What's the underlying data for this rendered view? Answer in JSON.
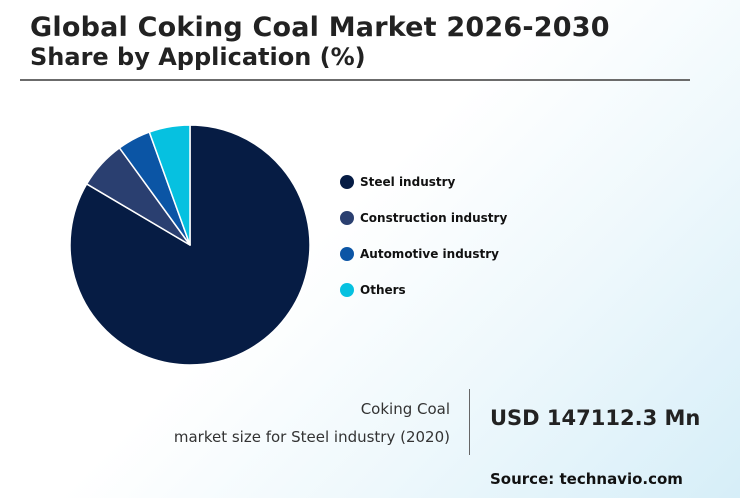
{
  "header": {
    "title": "Global Coking Coal Market 2026-2030",
    "subtitle": "Share by Application (%)"
  },
  "chart_data": {
    "type": "pie",
    "slices": [
      {
        "label": "Steel industry",
        "value": 83.5,
        "color": "#061c44"
      },
      {
        "label": "Construction industry",
        "value": 6.5,
        "color": "#2a3f70"
      },
      {
        "label": "Automotive industry",
        "value": 4.5,
        "color": "#0b55a5"
      },
      {
        "label": "Others",
        "value": 5.5,
        "color": "#06c1e0"
      }
    ],
    "legend_position": "right"
  },
  "footer": {
    "market_line1": "Coking Coal",
    "market_line2": "market size for Steel industry (2020)",
    "market_value": "USD 147112.3 Mn",
    "source": "Source: technavio.com"
  }
}
